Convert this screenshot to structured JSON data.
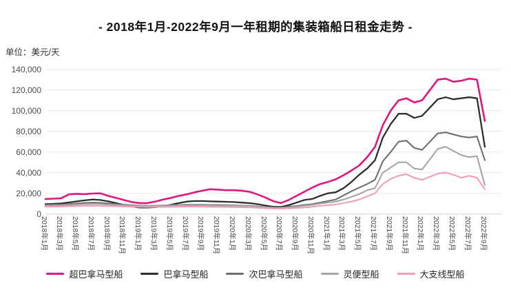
{
  "title": "- 2018年1月-2022年9月一年租期的集装箱船日租金走势 -",
  "unit_label": "单位：美元/天",
  "chart_data": {
    "type": "line",
    "title": "- 2018年1月-2022年9月一年租期的集装箱船日租金走势 -",
    "ylabel": "单位：美元/天",
    "ylim": [
      0,
      140000
    ],
    "y_ticks": [
      0,
      20000,
      40000,
      60000,
      80000,
      100000,
      120000,
      140000
    ],
    "grid": true,
    "legend_position": "bottom",
    "x_months_total": 57,
    "x_tick_labels": [
      "2018年1月",
      "2018年3月",
      "2018年5月",
      "2018年7月",
      "2018年9月",
      "2018年11月",
      "2019年1月",
      "2019年3月",
      "2019年5月",
      "2019年7月",
      "2019年9月",
      "2019年11月",
      "2020年1月",
      "2020年3月",
      "2020年5月",
      "2020年7月",
      "2020年9月",
      "2020年11月",
      "2021年1月",
      "2021年3月",
      "2021年5月",
      "2021年7月",
      "2021年9月",
      "2021年11月",
      "2022年1月",
      "2022年3月",
      "2022年5月",
      "2022年7月",
      "2022年9月"
    ],
    "grid_color": "#e9e9e9",
    "axis_color": "#d2d2d2",
    "series": [
      {
        "key": "postpanamax",
        "name": "超巴拿马型船",
        "color": "#E0147E",
        "width": 2.6,
        "values": [
          14500,
          14800,
          15200,
          19000,
          19500,
          19200,
          19800,
          20000,
          17500,
          15500,
          13500,
          11500,
          10500,
          10500,
          12000,
          14000,
          15500,
          17500,
          19000,
          21000,
          22500,
          24000,
          23500,
          23000,
          23000,
          22500,
          21500,
          19000,
          16000,
          12500,
          10500,
          13500,
          17500,
          21500,
          25500,
          29000,
          31000,
          33500,
          37500,
          42000,
          47000,
          55000,
          65000,
          86000,
          100000,
          110000,
          112000,
          108000,
          110000,
          120000,
          130000,
          131000,
          128000,
          129000,
          131000,
          130000,
          90000
        ]
      },
      {
        "key": "panamax",
        "name": "巴拿马型船",
        "color": "#2D2D2D",
        "width": 2.3,
        "values": [
          9500,
          9800,
          10200,
          11200,
          12200,
          13200,
          14000,
          13500,
          12200,
          10500,
          8800,
          7200,
          6300,
          6200,
          6500,
          7500,
          9000,
          10500,
          12000,
          12500,
          12500,
          12200,
          12000,
          11800,
          11500,
          11000,
          10500,
          9500,
          8200,
          7000,
          6800,
          8500,
          11000,
          13500,
          14500,
          17500,
          20000,
          21000,
          25000,
          31000,
          38000,
          44000,
          52000,
          74000,
          87000,
          97000,
          97000,
          93000,
          95000,
          103000,
          111000,
          113000,
          111000,
          112000,
          113000,
          112000,
          65000
        ]
      },
      {
        "key": "subpanamax",
        "name": "次巴拿马型船",
        "color": "#6E6E6E",
        "width": 2.1,
        "values": [
          8800,
          9000,
          9200,
          9600,
          10200,
          10800,
          11000,
          10800,
          10200,
          9600,
          9000,
          8500,
          8200,
          8000,
          8100,
          8300,
          8600,
          8800,
          9000,
          9000,
          8900,
          8800,
          8700,
          8600,
          8400,
          8200,
          8000,
          7400,
          6700,
          6200,
          6000,
          7000,
          7800,
          8800,
          9500,
          11000,
          12500,
          14000,
          18000,
          22000,
          25500,
          29000,
          33000,
          51000,
          60000,
          70000,
          71000,
          64000,
          62000,
          70000,
          78000,
          79000,
          77000,
          75000,
          74000,
          75000,
          52000
        ]
      },
      {
        "key": "handy",
        "name": "灵便型船",
        "color": "#A5A5A5",
        "width": 2.1,
        "values": [
          8200,
          8300,
          8400,
          8700,
          9100,
          9500,
          9700,
          9500,
          9100,
          8700,
          8400,
          8100,
          7900,
          7800,
          7900,
          8000,
          8200,
          8400,
          8500,
          8500,
          8400,
          8300,
          8200,
          8100,
          8000,
          7900,
          7700,
          7100,
          6500,
          6100,
          5900,
          6400,
          7100,
          8000,
          8800,
          10000,
          11000,
          12000,
          14000,
          16500,
          19300,
          23000,
          25000,
          40000,
          45000,
          50000,
          50000,
          44000,
          43000,
          53000,
          63000,
          65000,
          61000,
          57000,
          55000,
          56000,
          28000
        ]
      },
      {
        "key": "feeder",
        "name": "大支线型船",
        "color": "#F19CBB",
        "width": 2.1,
        "values": [
          7000,
          7100,
          7200,
          7400,
          7600,
          7800,
          7900,
          7800,
          7600,
          7400,
          7200,
          7000,
          6800,
          6700,
          6700,
          6800,
          6900,
          7000,
          7100,
          7100,
          7000,
          6900,
          6800,
          6700,
          6600,
          6500,
          6400,
          6000,
          5600,
          5300,
          5200,
          5400,
          5800,
          6300,
          7000,
          7800,
          8500,
          9200,
          10500,
          12000,
          14000,
          17000,
          20000,
          29000,
          34000,
          37000,
          38500,
          35000,
          33000,
          36000,
          39000,
          40000,
          38000,
          35000,
          37000,
          35000,
          24000
        ]
      }
    ]
  }
}
